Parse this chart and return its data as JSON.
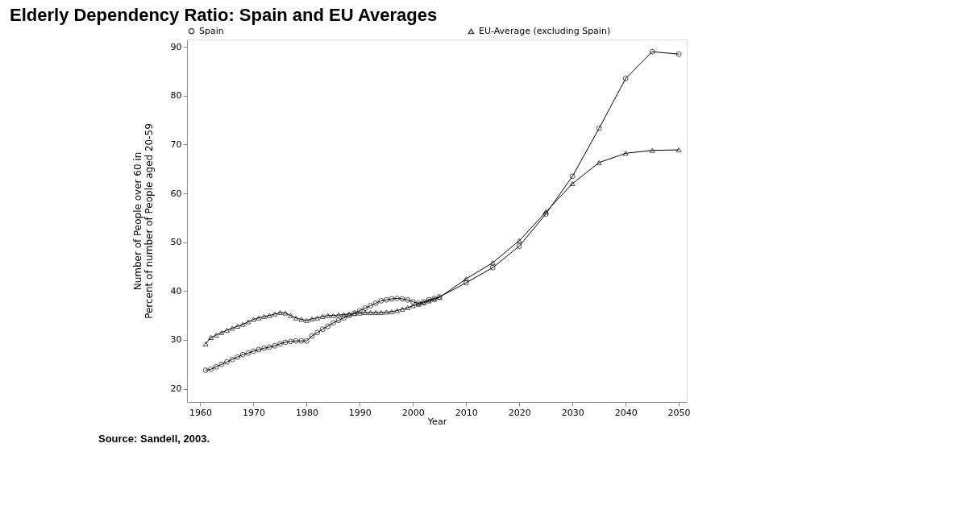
{
  "chart_data": {
    "type": "line",
    "title": "Elderly Dependency Ratio: Spain and EU Averages",
    "xlabel": "Year",
    "ylabel": "Number of People over 60 in Percent of number of People aged 20-59",
    "x": [
      1961,
      1962,
      1963,
      1964,
      1965,
      1966,
      1967,
      1968,
      1969,
      1970,
      1971,
      1972,
      1973,
      1974,
      1975,
      1976,
      1977,
      1978,
      1979,
      1980,
      1981,
      1982,
      1983,
      1984,
      1985,
      1986,
      1987,
      1988,
      1989,
      1990,
      1991,
      1992,
      1993,
      1994,
      1995,
      1996,
      1997,
      1998,
      1999,
      2000,
      2001,
      2002,
      2003,
      2004,
      2005,
      2010,
      2015,
      2020,
      2025,
      2030,
      2035,
      2040,
      2045,
      2050
    ],
    "series": [
      {
        "name": "Spain",
        "color": "#000000",
        "marker": "circle",
        "values": [
          23.8,
          24.0,
          24.5,
          25.0,
          25.5,
          26.0,
          26.5,
          27.0,
          27.3,
          27.7,
          28.0,
          28.3,
          28.5,
          28.8,
          29.2,
          29.5,
          29.7,
          29.8,
          29.8,
          29.8,
          30.8,
          31.5,
          32.2,
          32.8,
          33.5,
          34.0,
          34.5,
          35.0,
          35.5,
          36.0,
          36.5,
          37.0,
          37.5,
          38.0,
          38.2,
          38.4,
          38.5,
          38.4,
          38.2,
          37.8,
          37.5,
          37.8,
          38.2,
          38.5,
          38.8,
          41.7,
          44.8,
          49.2,
          55.8,
          63.5,
          73.3,
          83.5,
          89.0,
          88.5
        ]
      },
      {
        "name": "EU-Average (excluding Spain)",
        "color": "#000000",
        "marker": "triangle",
        "values": [
          29.2,
          30.5,
          31.0,
          31.5,
          32.0,
          32.4,
          32.8,
          33.2,
          33.7,
          34.2,
          34.5,
          34.8,
          35.0,
          35.3,
          35.6,
          35.5,
          35.0,
          34.5,
          34.2,
          34.0,
          34.3,
          34.5,
          34.8,
          35.0,
          35.0,
          35.1,
          35.2,
          35.3,
          35.4,
          35.5,
          35.6,
          35.6,
          35.6,
          35.6,
          35.7,
          35.8,
          36.0,
          36.3,
          36.6,
          37.0,
          37.3,
          37.6,
          38.0,
          38.3,
          38.7,
          42.5,
          45.8,
          50.3,
          56.2,
          62.0,
          66.3,
          68.2,
          68.8,
          68.9
        ]
      }
    ],
    "xlim": [
      1957.5,
      2051.5
    ],
    "xticks": [
      1960,
      1970,
      1980,
      1990,
      2000,
      2010,
      2020,
      2030,
      2040,
      2050
    ],
    "ylim": [
      17.3,
      91.5
    ],
    "yticks": [
      20,
      30,
      40,
      50,
      60,
      70,
      80,
      90
    ],
    "grid": false,
    "legend": "top",
    "line_style": "solid",
    "annotations": [
      "Source: Sandell, 2003."
    ]
  }
}
